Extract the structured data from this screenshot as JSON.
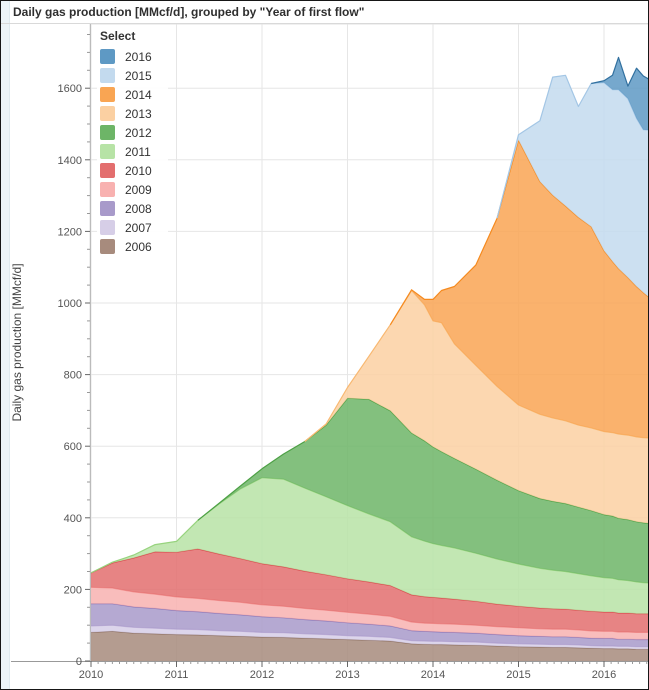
{
  "window": {
    "title": "Daily gas production [MMcf/d], grouped by \"Year of first flow\""
  },
  "legend": {
    "title": "Select"
  },
  "axes": {
    "y_label": "Daily gas production [MMcf/d]",
    "y_ticks": [
      0,
      200,
      400,
      600,
      800,
      1000,
      1200,
      1400,
      1600
    ],
    "x_ticks": [
      2010,
      2011,
      2012,
      2013,
      2014,
      2015,
      2016
    ]
  },
  "chart_data": {
    "type": "area",
    "stacked": true,
    "title": "Daily gas production [MMcf/d], grouped by \"Year of first flow\"",
    "xlabel": "",
    "ylabel": "Daily gas production [MMcf/d]",
    "x_range": [
      2009.98,
      2016.54
    ],
    "y_range": [
      0,
      1780
    ],
    "grid": true,
    "legend_position": "top-left",
    "legend_title": "Select",
    "x": [
      2010.0,
      2010.25,
      2010.5,
      2010.75,
      2011.0,
      2011.25,
      2011.5,
      2011.75,
      2012.0,
      2012.25,
      2012.5,
      2012.75,
      2013.0,
      2013.25,
      2013.5,
      2013.75,
      2013.9,
      2014.0,
      2014.1,
      2014.25,
      2014.5,
      2014.75,
      2015.0,
      2015.25,
      2015.4,
      2015.55,
      2015.7,
      2015.85,
      2016.0,
      2016.1,
      2016.17,
      2016.28,
      2016.38,
      2016.46,
      2016.54
    ],
    "series": [
      {
        "name": "2006",
        "fill": "#a78b7d",
        "line": "#8f7263",
        "values": [
          80,
          83,
          78,
          76,
          74,
          73,
          71,
          69,
          67,
          66,
          64,
          62,
          60,
          58,
          56,
          48,
          47,
          46,
          46,
          45,
          44,
          42,
          40,
          39,
          38,
          38,
          37,
          36,
          35,
          35,
          34,
          34,
          33,
          33,
          33
        ]
      },
      {
        "name": "2007",
        "fill": "#d6cee7",
        "line": "#bfb1d8",
        "values": [
          18,
          17,
          16,
          16,
          15,
          15,
          14,
          14,
          13,
          13,
          12,
          12,
          11,
          11,
          10,
          9,
          9,
          9,
          9,
          9,
          9,
          8,
          8,
          8,
          8,
          8,
          8,
          7,
          7,
          7,
          7,
          7,
          7,
          7,
          7
        ]
      },
      {
        "name": "2008",
        "fill": "#a89aca",
        "line": "#8b77b8",
        "values": [
          62,
          60,
          57,
          55,
          52,
          50,
          48,
          46,
          44,
          42,
          40,
          38,
          36,
          34,
          32,
          28,
          27,
          27,
          26,
          26,
          25,
          24,
          23,
          22,
          22,
          22,
          21,
          21,
          21,
          21,
          20,
          20,
          20,
          20,
          20
        ]
      },
      {
        "name": "2009",
        "fill": "#f8b1b0",
        "line": "#f29392",
        "values": [
          46,
          44,
          42,
          40,
          38,
          37,
          36,
          35,
          33,
          32,
          31,
          30,
          29,
          28,
          27,
          24,
          23,
          23,
          23,
          23,
          22,
          22,
          22,
          21,
          21,
          21,
          21,
          20,
          20,
          20,
          20,
          20,
          20,
          20,
          20
        ]
      },
      {
        "name": "2010",
        "fill": "#e36e6e",
        "line": "#d94a4c",
        "values": [
          40,
          70,
          95,
          118,
          125,
          138,
          130,
          122,
          115,
          110,
          104,
          99,
          94,
          90,
          86,
          76,
          74,
          73,
          72,
          70,
          67,
          63,
          60,
          58,
          57,
          56,
          55,
          55,
          54,
          54,
          53,
          53,
          52,
          52,
          52
        ]
      },
      {
        "name": "2011",
        "fill": "#b7e3a6",
        "line": "#97d37e",
        "values": [
          0,
          2,
          8,
          20,
          30,
          80,
          140,
          195,
          240,
          245,
          232,
          218,
          204,
          190,
          178,
          162,
          155,
          150,
          147,
          143,
          134,
          126,
          118,
          111,
          108,
          105,
          102,
          99,
          96,
          94,
          93,
          91,
          89,
          87,
          86
        ]
      },
      {
        "name": "2012",
        "fill": "#6db567",
        "line": "#4da045",
        "values": [
          0,
          0,
          0,
          0,
          0,
          0,
          2,
          8,
          25,
          70,
          130,
          200,
          300,
          320,
          310,
          290,
          280,
          270,
          262,
          250,
          235,
          220,
          205,
          195,
          192,
          190,
          186,
          182,
          176,
          174,
          172,
          170,
          168,
          167,
          166
        ]
      },
      {
        "name": "2013",
        "fill": "#fbd0a2",
        "line": "#f8b871",
        "values": [
          0,
          0,
          0,
          0,
          0,
          0,
          0,
          0,
          0,
          0,
          0,
          3,
          30,
          120,
          240,
          398,
          380,
          352,
          360,
          320,
          290,
          262,
          239,
          235,
          233,
          231,
          229,
          231,
          232,
          233,
          235,
          236,
          237,
          238,
          239
        ]
      },
      {
        "name": "2014",
        "fill": "#f9a553",
        "line": "#f58a1f",
        "values": [
          0,
          0,
          0,
          0,
          0,
          0,
          0,
          0,
          0,
          0,
          0,
          0,
          0,
          0,
          0,
          2,
          15,
          60,
          90,
          160,
          280,
          470,
          740,
          650,
          622,
          600,
          580,
          562,
          505,
          478,
          462,
          440,
          420,
          405,
          390
        ]
      },
      {
        "name": "2015",
        "fill": "#c3daee",
        "line": "#a3c6e5",
        "values": [
          0,
          0,
          0,
          0,
          0,
          0,
          0,
          0,
          0,
          0,
          0,
          0,
          0,
          0,
          0,
          0,
          0,
          0,
          0,
          0,
          0,
          0,
          15,
          170,
          330,
          365,
          310,
          400,
          470,
          480,
          500,
          500,
          470,
          455,
          470
        ]
      },
      {
        "name": "2016",
        "fill": "#5e99c4",
        "line": "#31709f",
        "values": [
          0,
          0,
          0,
          0,
          0,
          0,
          0,
          0,
          0,
          0,
          0,
          0,
          0,
          0,
          0,
          0,
          0,
          0,
          0,
          0,
          0,
          0,
          0,
          0,
          0,
          0,
          0,
          0,
          5,
          40,
          90,
          35,
          140,
          150,
          140
        ]
      }
    ]
  }
}
